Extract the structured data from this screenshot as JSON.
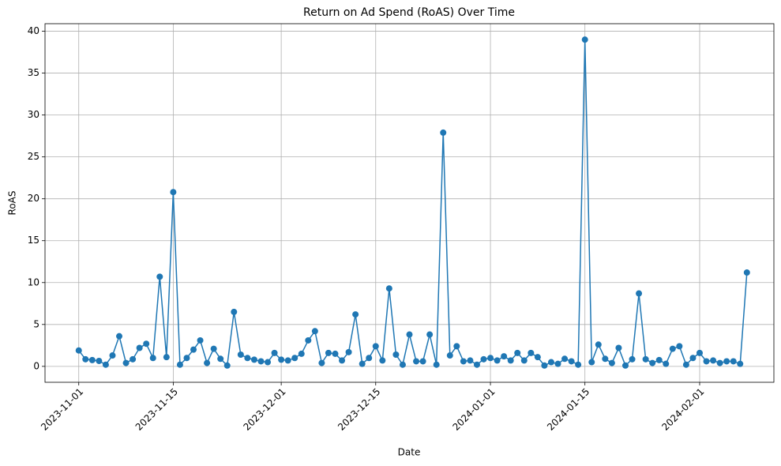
{
  "chart_data": {
    "type": "line",
    "title": "Return on Ad Spend (RoAS) Over Time",
    "x_label": "Date",
    "y_label": "RoAS",
    "x": [
      "2023-11-01",
      "2023-11-02",
      "2023-11-03",
      "2023-11-04",
      "2023-11-05",
      "2023-11-06",
      "2023-11-07",
      "2023-11-08",
      "2023-11-09",
      "2023-11-10",
      "2023-11-11",
      "2023-11-12",
      "2023-11-13",
      "2023-11-14",
      "2023-11-15",
      "2023-11-16",
      "2023-11-17",
      "2023-11-18",
      "2023-11-19",
      "2023-11-20",
      "2023-11-21",
      "2023-11-22",
      "2023-11-23",
      "2023-11-24",
      "2023-11-25",
      "2023-11-26",
      "2023-11-27",
      "2023-11-28",
      "2023-11-29",
      "2023-11-30",
      "2023-12-01",
      "2023-12-02",
      "2023-12-03",
      "2023-12-04",
      "2023-12-05",
      "2023-12-06",
      "2023-12-07",
      "2023-12-08",
      "2023-12-09",
      "2023-12-10",
      "2023-12-11",
      "2023-12-12",
      "2023-12-13",
      "2023-12-14",
      "2023-12-15",
      "2023-12-16",
      "2023-12-17",
      "2023-12-18",
      "2023-12-19",
      "2023-12-20",
      "2023-12-21",
      "2023-12-22",
      "2023-12-23",
      "2023-12-24",
      "2023-12-25",
      "2023-12-26",
      "2023-12-27",
      "2023-12-28",
      "2023-12-29",
      "2023-12-30",
      "2023-12-31",
      "2024-01-01",
      "2024-01-02",
      "2024-01-03",
      "2024-01-04",
      "2024-01-05",
      "2024-01-06",
      "2024-01-07",
      "2024-01-08",
      "2024-01-09",
      "2024-01-10",
      "2024-01-11",
      "2024-01-12",
      "2024-01-13",
      "2024-01-14",
      "2024-01-15",
      "2024-01-16",
      "2024-01-17",
      "2024-01-18",
      "2024-01-19",
      "2024-01-20",
      "2024-01-21",
      "2024-01-22",
      "2024-01-23",
      "2024-01-24",
      "2024-01-25",
      "2024-01-26",
      "2024-01-27",
      "2024-01-28",
      "2024-01-29",
      "2024-01-30",
      "2024-01-31",
      "2024-02-01",
      "2024-02-02",
      "2024-02-03",
      "2024-02-04",
      "2024-02-05",
      "2024-02-06",
      "2024-02-07",
      "2024-02-08"
    ],
    "values": [
      1.9,
      0.85,
      0.75,
      0.65,
      0.2,
      1.3,
      3.6,
      0.4,
      0.85,
      2.2,
      2.7,
      1.0,
      10.7,
      1.1,
      20.8,
      0.2,
      1.0,
      2.0,
      3.1,
      0.4,
      2.1,
      0.9,
      0.1,
      6.5,
      1.4,
      1.0,
      0.8,
      0.6,
      0.5,
      1.6,
      0.8,
      0.7,
      1.0,
      1.5,
      3.1,
      4.2,
      0.4,
      1.6,
      1.5,
      0.7,
      1.7,
      6.2,
      0.3,
      1.0,
      2.4,
      0.7,
      9.3,
      1.4,
      0.2,
      3.8,
      0.6,
      0.6,
      3.8,
      0.2,
      27.9,
      1.3,
      2.4,
      0.6,
      0.7,
      0.2,
      0.85,
      1.0,
      0.7,
      1.2,
      0.7,
      1.6,
      0.7,
      1.6,
      1.1,
      0.1,
      0.5,
      0.3,
      0.9,
      0.6,
      0.2,
      39.0,
      0.5,
      2.6,
      0.9,
      0.4,
      2.2,
      0.1,
      0.85,
      8.7,
      0.85,
      0.4,
      0.75,
      0.3,
      2.1,
      2.4,
      0.2,
      1.0,
      1.6,
      0.6,
      0.7,
      0.4,
      0.6,
      0.6,
      0.3,
      11.2
    ],
    "color": "#1f77b4",
    "xlim": [
      "2023-10-27",
      "2024-02-12"
    ],
    "xticks": [
      "2023-11-01",
      "2023-11-15",
      "2023-12-01",
      "2023-12-15",
      "2024-01-01",
      "2024-01-15",
      "2024-02-01"
    ],
    "ylim": [
      -1.9,
      40.9
    ],
    "yticks": [
      0,
      5,
      10,
      15,
      20,
      25,
      30,
      35,
      40
    ],
    "grid": true
  }
}
